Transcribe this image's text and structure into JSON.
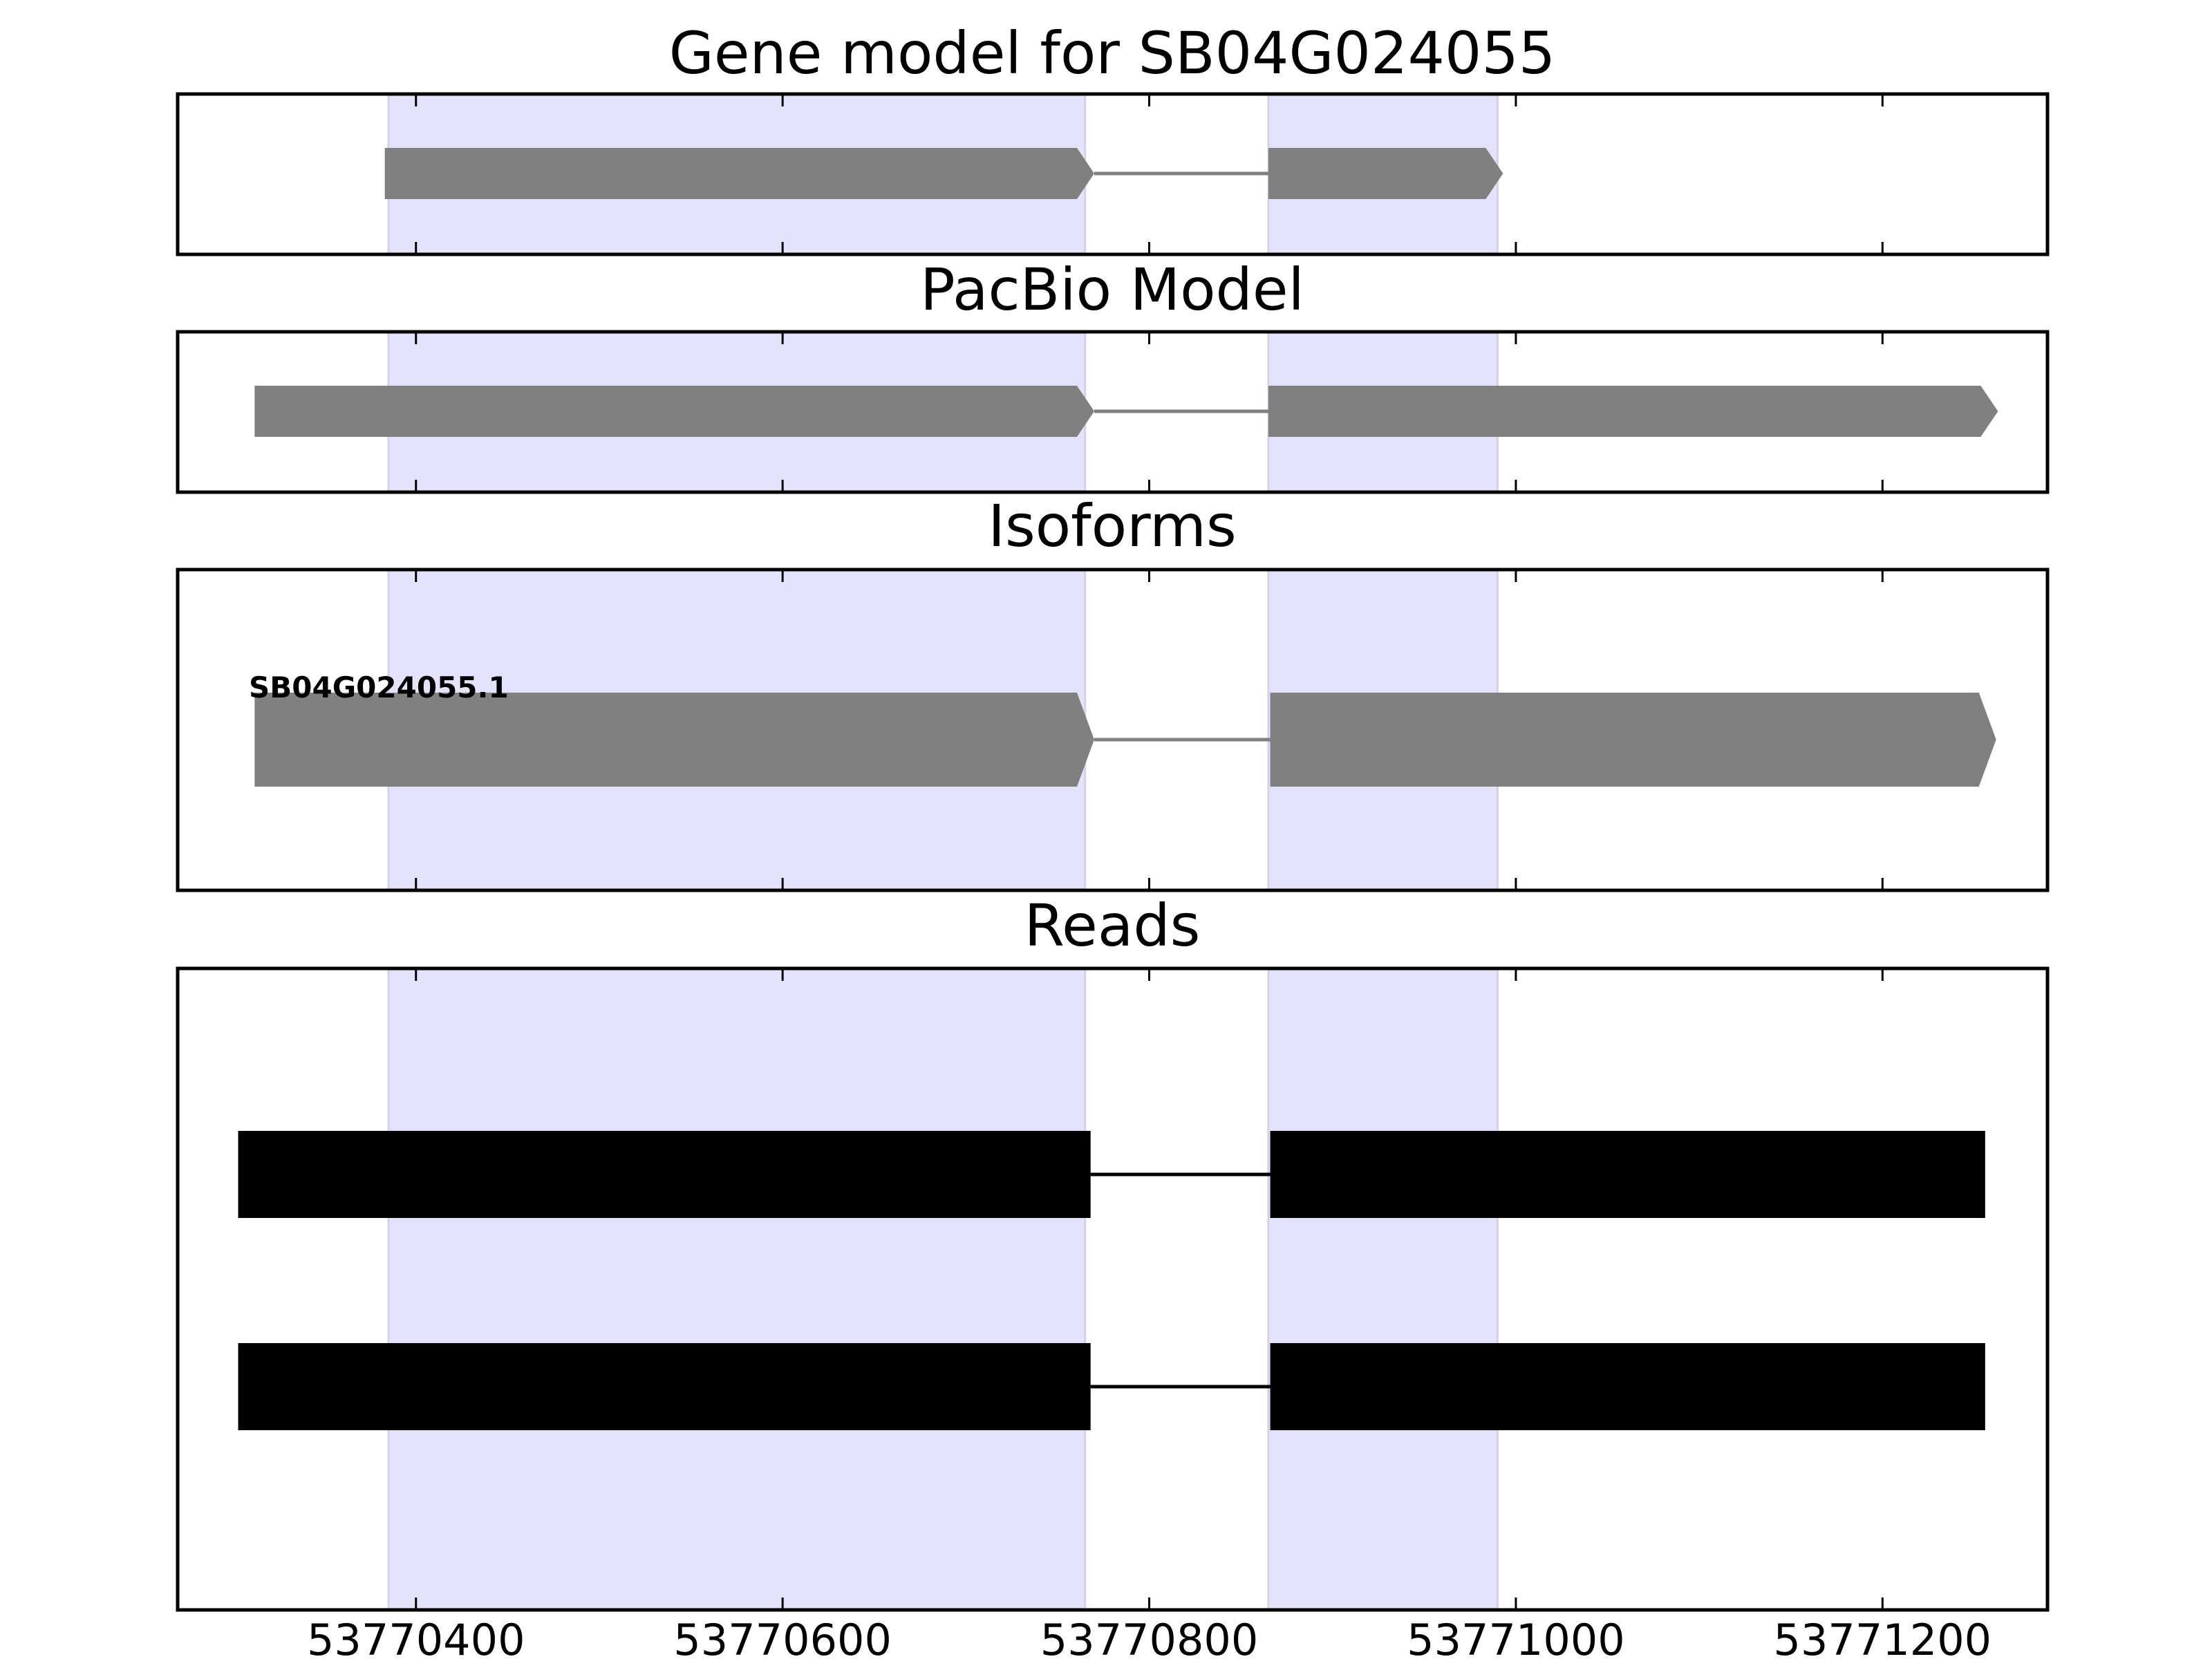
{
  "chart_data": {
    "type": "gene-track",
    "xlim": [
      53770270,
      53771290
    ],
    "x_ticks": [
      53770400,
      53770600,
      53770800,
      53771000,
      53771200
    ],
    "x_tick_labels": [
      "53770400",
      "53770600",
      "53770800",
      "53771000",
      "53771200"
    ],
    "colors": {
      "exon": "#808080",
      "intron": "#808080",
      "read": "#000000",
      "highlight": "#e3e3fc"
    },
    "highlight_regions": [
      [
        53770385,
        53770765
      ],
      [
        53770865,
        53770990
      ]
    ],
    "panels": [
      {
        "title": "Gene model for SB04G024055",
        "features": [
          {
            "label": "",
            "strand": "+",
            "exons": [
              [
                53770383,
                53770770
              ],
              [
                53770865,
                53770993
              ]
            ]
          }
        ]
      },
      {
        "title": "PacBio Model",
        "features": [
          {
            "label": "",
            "strand": "+",
            "exons": [
              [
                53770312,
                53770770
              ],
              [
                53770865,
                53771263
              ]
            ]
          }
        ]
      },
      {
        "title": "Isoforms",
        "features": [
          {
            "label": "SB04G024055.1",
            "strand": "+",
            "exons": [
              [
                53770312,
                53770770
              ],
              [
                53770866,
                53771262
              ]
            ]
          }
        ]
      },
      {
        "title": "Reads",
        "features": [
          {
            "label": "",
            "strand": "",
            "exons": [
              [
                53770303,
                53770768
              ],
              [
                53770866,
                53771256
              ]
            ]
          },
          {
            "label": "",
            "strand": "",
            "exons": [
              [
                53770303,
                53770768
              ],
              [
                53770866,
                53771256
              ]
            ]
          }
        ]
      }
    ]
  }
}
